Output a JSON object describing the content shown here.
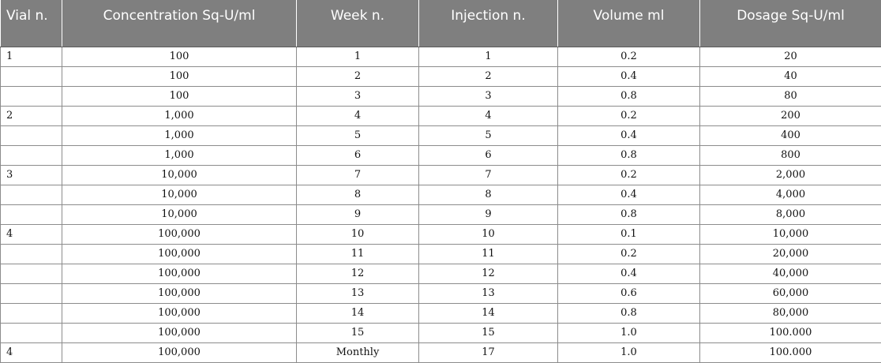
{
  "table": {
    "headers": [
      "Vial n.",
      "Concentration Sq-U/ml",
      "Week n.",
      "Injection n.",
      "Volume ml",
      "Dosage Sq-U/ml"
    ],
    "rows": [
      [
        "1",
        "100",
        "1",
        "1",
        "0.2",
        "20"
      ],
      [
        "",
        "100",
        "2",
        "2",
        "0.4",
        "40"
      ],
      [
        "",
        "100",
        "3",
        "3",
        "0.8",
        "80"
      ],
      [
        "2",
        "1,000",
        "4",
        "4",
        "0.2",
        "200"
      ],
      [
        "",
        "1,000",
        "5",
        "5",
        "0.4",
        "400"
      ],
      [
        "",
        "1,000",
        "6",
        "6",
        "0.8",
        "800"
      ],
      [
        "3",
        "10,000",
        "7",
        "7",
        "0.2",
        "2,000"
      ],
      [
        "",
        "10,000",
        "8",
        "8",
        "0.4",
        "4,000"
      ],
      [
        "",
        "10,000",
        "9",
        "9",
        "0.8",
        "8,000"
      ],
      [
        "4",
        "100,000",
        "10",
        "10",
        "0.1",
        "10,000"
      ],
      [
        "",
        "100,000",
        "11",
        "11",
        "0.2",
        "20,000"
      ],
      [
        "",
        "100,000",
        "12",
        "12",
        "0.4",
        "40,000"
      ],
      [
        "",
        "100,000",
        "13",
        "13",
        "0.6",
        "60,000"
      ],
      [
        "",
        "100,000",
        "14",
        "14",
        "0.8",
        "80,000"
      ],
      [
        "",
        "100,000",
        "15",
        "15",
        "1.0",
        "100.000"
      ],
      [
        "4",
        "100,000",
        "Monthly",
        "17",
        "1.0",
        "100.000"
      ]
    ]
  }
}
